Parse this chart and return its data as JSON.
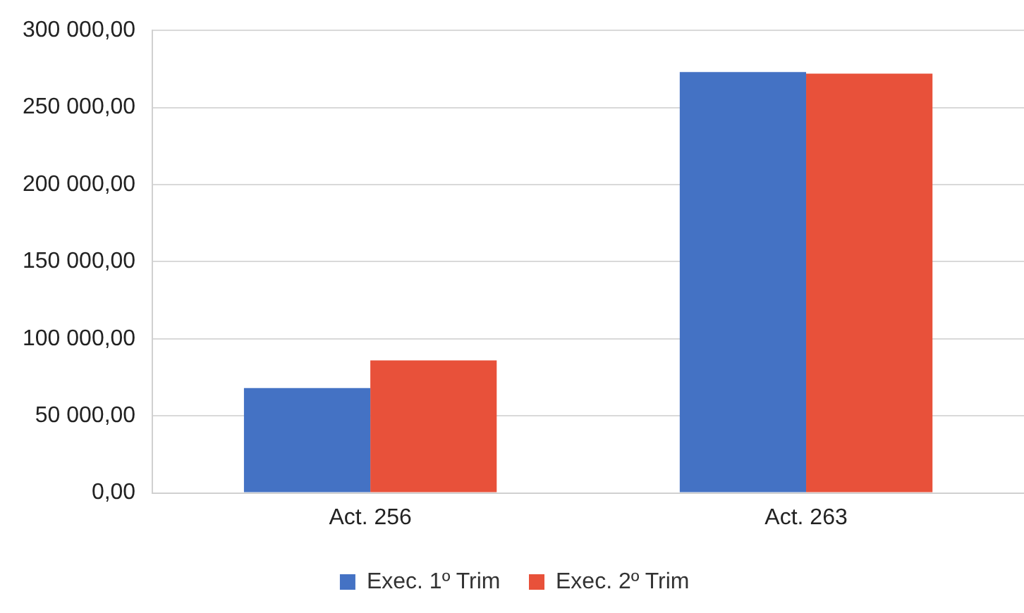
{
  "chart_data": {
    "type": "bar",
    "categories": [
      "Act. 256",
      "Act. 263"
    ],
    "series": [
      {
        "name": "Exec. 1º Trim",
        "color": "#4472c4",
        "values": [
          68000,
          273000
        ]
      },
      {
        "name": "Exec. 2º Trim",
        "color": "#e8513a",
        "values": [
          86000,
          272000
        ]
      }
    ],
    "ylim": [
      0,
      300000
    ],
    "yticks": [
      {
        "value": 0,
        "label": "0,00"
      },
      {
        "value": 50000,
        "label": "50 000,00"
      },
      {
        "value": 100000,
        "label": "100 000,00"
      },
      {
        "value": 150000,
        "label": "150 000,00"
      },
      {
        "value": 200000,
        "label": "200 000,00"
      },
      {
        "value": 250000,
        "label": "250 000,00"
      },
      {
        "value": 300000,
        "label": "300 000,00"
      }
    ],
    "grid": "y",
    "legend": "bottom"
  }
}
